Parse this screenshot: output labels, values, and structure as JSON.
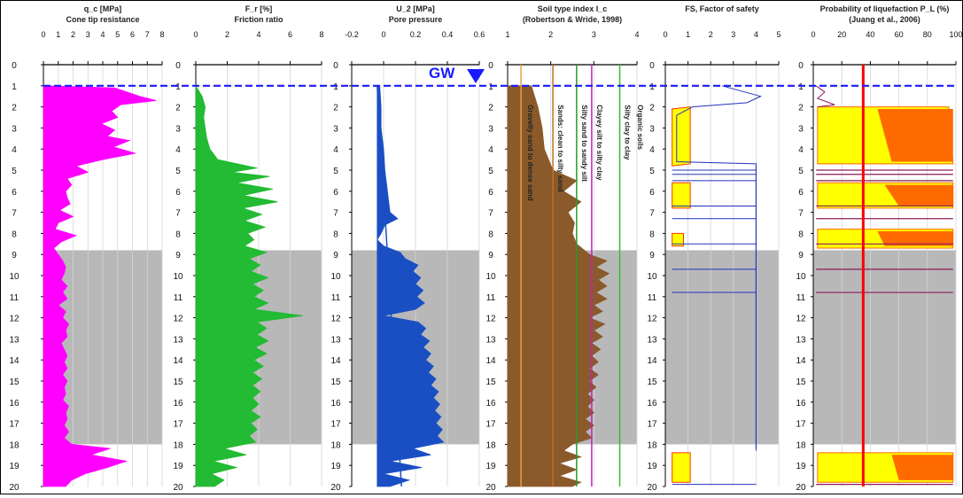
{
  "chart_data": {
    "type": "area",
    "depth_axis": {
      "min": 0,
      "max": 20,
      "ticks": [
        0,
        1,
        2,
        3,
        4,
        5,
        6,
        7,
        8,
        9,
        10,
        11,
        12,
        13,
        14,
        15,
        16,
        17,
        18,
        19,
        20
      ]
    },
    "gw_depth": 1,
    "gw_label": "GW",
    "gray_zone": [
      8.8,
      18.0
    ],
    "panels": [
      {
        "id": "qc",
        "title": "q_c [MPa]",
        "subtitle": "Cone tip resistance",
        "xlim": [
          0,
          8
        ],
        "ticks": [
          "0",
          "1",
          "2",
          "3",
          "4",
          "5",
          "6",
          "7",
          "8"
        ],
        "color": "#ff00ff",
        "profile": [
          [
            1,
            0
          ],
          [
            1.1,
            4.8
          ],
          [
            1.5,
            6.5
          ],
          [
            1.7,
            7.6
          ],
          [
            1.9,
            5.2
          ],
          [
            2.2,
            4.6
          ],
          [
            2.5,
            5.0
          ],
          [
            2.8,
            3.9
          ],
          [
            3.1,
            4.8
          ],
          [
            3.4,
            4.3
          ],
          [
            3.6,
            5.8
          ],
          [
            3.9,
            4.7
          ],
          [
            4.2,
            6.2
          ],
          [
            4.5,
            4.0
          ],
          [
            4.8,
            2.2
          ],
          [
            5.1,
            3.0
          ],
          [
            5.4,
            1.6
          ],
          [
            5.7,
            1.9
          ],
          [
            6.0,
            1.5
          ],
          [
            6.3,
            1.6
          ],
          [
            6.6,
            1.8
          ],
          [
            6.9,
            1.1
          ],
          [
            7.2,
            2.0
          ],
          [
            7.5,
            1.0
          ],
          [
            7.8,
            0.8
          ],
          [
            8.1,
            2.2
          ],
          [
            8.4,
            1.2
          ],
          [
            8.7,
            0.7
          ],
          [
            9.0,
            1.0
          ],
          [
            9.3,
            1.3
          ],
          [
            9.6,
            1.5
          ],
          [
            9.9,
            1.4
          ],
          [
            10.2,
            1.2
          ],
          [
            10.5,
            1.6
          ],
          [
            10.8,
            1.3
          ],
          [
            11.1,
            1.6
          ],
          [
            11.4,
            1.0
          ],
          [
            11.7,
            1.5
          ],
          [
            12.0,
            1.3
          ],
          [
            12.3,
            1.7
          ],
          [
            12.6,
            1.5
          ],
          [
            12.9,
            1.6
          ],
          [
            13.2,
            1.2
          ],
          [
            13.5,
            1.4
          ],
          [
            13.8,
            1.6
          ],
          [
            14.1,
            1.4
          ],
          [
            14.4,
            1.6
          ],
          [
            14.7,
            1.3
          ],
          [
            15.0,
            1.6
          ],
          [
            15.3,
            1.4
          ],
          [
            15.6,
            1.5
          ],
          [
            15.9,
            1.3
          ],
          [
            16.2,
            1.7
          ],
          [
            16.5,
            1.5
          ],
          [
            16.8,
            1.6
          ],
          [
            17.1,
            1.4
          ],
          [
            17.4,
            1.7
          ],
          [
            17.7,
            1.4
          ],
          [
            18.0,
            1.9
          ],
          [
            18.2,
            4.5
          ],
          [
            18.5,
            3.2
          ],
          [
            18.8,
            5.6
          ],
          [
            19.1,
            4.3
          ],
          [
            19.4,
            2.8
          ],
          [
            19.7,
            1.9
          ],
          [
            20,
            1.5
          ]
        ]
      },
      {
        "id": "fr",
        "title": "F_r [%]",
        "subtitle": "Friction ratio",
        "xlim": [
          0,
          8
        ],
        "ticks": [
          "0",
          "2",
          "4",
          "6",
          "8"
        ],
        "color": "#22bb33",
        "profile": [
          [
            1,
            0
          ],
          [
            1.5,
            0.4
          ],
          [
            2.0,
            0.6
          ],
          [
            2.5,
            0.5
          ],
          [
            3.0,
            0.6
          ],
          [
            3.5,
            0.7
          ],
          [
            4.0,
            0.9
          ],
          [
            4.5,
            1.4
          ],
          [
            4.9,
            3.9
          ],
          [
            5.1,
            2.3
          ],
          [
            5.3,
            4.7
          ],
          [
            5.6,
            2.6
          ],
          [
            5.9,
            4.9
          ],
          [
            6.2,
            3.0
          ],
          [
            6.5,
            5.2
          ],
          [
            6.8,
            3.0
          ],
          [
            7.1,
            4.2
          ],
          [
            7.4,
            3.1
          ],
          [
            7.7,
            4.4
          ],
          [
            8.0,
            3.3
          ],
          [
            8.3,
            3.7
          ],
          [
            8.6,
            3.1
          ],
          [
            8.9,
            4.5
          ],
          [
            9.2,
            3.4
          ],
          [
            9.5,
            4.1
          ],
          [
            9.8,
            3.5
          ],
          [
            10.1,
            4.6
          ],
          [
            10.4,
            3.6
          ],
          [
            10.7,
            4.3
          ],
          [
            11.0,
            3.7
          ],
          [
            11.3,
            4.6
          ],
          [
            11.6,
            3.7
          ],
          [
            11.9,
            6.8
          ],
          [
            12.2,
            3.9
          ],
          [
            12.5,
            4.5
          ],
          [
            12.8,
            3.9
          ],
          [
            13.1,
            4.6
          ],
          [
            13.4,
            3.8
          ],
          [
            13.7,
            4.5
          ],
          [
            14.0,
            3.7
          ],
          [
            14.3,
            4.3
          ],
          [
            14.6,
            3.6
          ],
          [
            14.9,
            4.2
          ],
          [
            15.2,
            3.6
          ],
          [
            15.5,
            4.1
          ],
          [
            15.8,
            3.6
          ],
          [
            16.1,
            4.0
          ],
          [
            16.4,
            3.5
          ],
          [
            16.7,
            4.1
          ],
          [
            17.0,
            3.5
          ],
          [
            17.3,
            3.9
          ],
          [
            17.6,
            3.4
          ],
          [
            17.9,
            3.8
          ],
          [
            18.2,
            1.8
          ],
          [
            18.5,
            3.2
          ],
          [
            18.8,
            1.1
          ],
          [
            19.1,
            2.6
          ],
          [
            19.4,
            1.0
          ],
          [
            19.7,
            1.8
          ],
          [
            20,
            1.2
          ]
        ]
      },
      {
        "id": "u2",
        "title": "U_2 [MPa]",
        "subtitle": "Pore pressure",
        "xlim": [
          -0.2,
          0.8
        ],
        "ticks": [
          "-0.2",
          "0",
          "0.2",
          "0.4",
          "0.6"
        ],
        "color": "#1a4fc4",
        "hydrostatic": [
          [
            1,
            0
          ],
          [
            20,
            0.19
          ]
        ],
        "profile": [
          [
            1,
            0.02
          ],
          [
            2,
            0.03
          ],
          [
            3,
            0.03
          ],
          [
            4,
            0.05
          ],
          [
            5,
            0.06
          ],
          [
            6,
            0.08
          ],
          [
            7,
            0.1
          ],
          [
            7.3,
            0.16
          ],
          [
            7.6,
            0.06
          ],
          [
            8.0,
            0.03
          ],
          [
            8.3,
            0.0
          ],
          [
            8.6,
            0.05
          ],
          [
            8.9,
            0.18
          ],
          [
            9.2,
            0.22
          ],
          [
            9.5,
            0.32
          ],
          [
            9.8,
            0.28
          ],
          [
            10.1,
            0.34
          ],
          [
            10.4,
            0.3
          ],
          [
            10.7,
            0.36
          ],
          [
            11.0,
            0.31
          ],
          [
            11.3,
            0.37
          ],
          [
            11.6,
            0.3
          ],
          [
            11.9,
            0.05
          ],
          [
            12.2,
            0.32
          ],
          [
            12.5,
            0.38
          ],
          [
            12.8,
            0.34
          ],
          [
            13.1,
            0.41
          ],
          [
            13.4,
            0.36
          ],
          [
            13.7,
            0.42
          ],
          [
            14.0,
            0.38
          ],
          [
            14.3,
            0.44
          ],
          [
            14.6,
            0.4
          ],
          [
            14.9,
            0.46
          ],
          [
            15.2,
            0.42
          ],
          [
            15.5,
            0.48
          ],
          [
            15.8,
            0.44
          ],
          [
            16.1,
            0.49
          ],
          [
            16.4,
            0.45
          ],
          [
            16.7,
            0.5
          ],
          [
            17.0,
            0.46
          ],
          [
            17.3,
            0.51
          ],
          [
            17.6,
            0.47
          ],
          [
            17.9,
            0.52
          ],
          [
            18.2,
            0.28
          ],
          [
            18.5,
            0.42
          ],
          [
            18.8,
            0.1
          ],
          [
            19.1,
            0.35
          ],
          [
            19.4,
            0.05
          ],
          [
            19.7,
            0.25
          ],
          [
            20,
            0.1
          ]
        ]
      },
      {
        "id": "ic",
        "title": "Soil type index I_c",
        "subtitle": "(Robertson & Wride, 1998)",
        "xlim": [
          1,
          4
        ],
        "ticks": [
          "1",
          "2",
          "3",
          "4"
        ],
        "color": "#8b5a2b",
        "boundaries": [
          {
            "x": 1.31,
            "label": "Gravelly sand to dense sand",
            "color": "#e8a040"
          },
          {
            "x": 2.05,
            "label": "Sands: clean to silty sand",
            "color": "#c07020"
          },
          {
            "x": 2.6,
            "label": "Silty sand to sandy silt",
            "color": "#2a9a2a"
          },
          {
            "x": 2.95,
            "label": "Clayey silt to silty clay",
            "color": "#c020c0"
          },
          {
            "x": 3.6,
            "label": "Silty clay to clay",
            "color": "#30c030"
          },
          {
            "x": 3.9,
            "label": "Organic soils",
            "color": "#ffffff"
          }
        ],
        "profile": [
          [
            1,
            1.55
          ],
          [
            2,
            1.7
          ],
          [
            3,
            1.8
          ],
          [
            4,
            1.85
          ],
          [
            5,
            2.05
          ],
          [
            5.5,
            2.6
          ],
          [
            6,
            2.3
          ],
          [
            6.5,
            2.7
          ],
          [
            7,
            2.4
          ],
          [
            7.5,
            2.55
          ],
          [
            8,
            2.5
          ],
          [
            8.5,
            2.6
          ],
          [
            9,
            2.9
          ],
          [
            9.3,
            3.3
          ],
          [
            9.6,
            3.05
          ],
          [
            9.9,
            3.35
          ],
          [
            10.2,
            3.1
          ],
          [
            10.5,
            3.3
          ],
          [
            10.8,
            3.05
          ],
          [
            11.1,
            3.3
          ],
          [
            11.4,
            3.0
          ],
          [
            11.7,
            3.2
          ],
          [
            12.0,
            2.9
          ],
          [
            12.3,
            3.25
          ],
          [
            12.6,
            3.0
          ],
          [
            12.9,
            3.2
          ],
          [
            13.2,
            2.95
          ],
          [
            13.5,
            3.15
          ],
          [
            13.8,
            2.95
          ],
          [
            14.1,
            3.1
          ],
          [
            14.4,
            2.9
          ],
          [
            14.7,
            3.1
          ],
          [
            15.0,
            2.9
          ],
          [
            15.3,
            3.05
          ],
          [
            15.6,
            2.85
          ],
          [
            15.9,
            3.0
          ],
          [
            16.2,
            2.85
          ],
          [
            16.5,
            3.0
          ],
          [
            16.8,
            2.8
          ],
          [
            17.1,
            3.0
          ],
          [
            17.4,
            2.8
          ],
          [
            17.7,
            2.95
          ],
          [
            18.0,
            2.5
          ],
          [
            18.3,
            2.3
          ],
          [
            18.6,
            2.7
          ],
          [
            18.9,
            2.2
          ],
          [
            19.2,
            2.6
          ],
          [
            19.5,
            2.2
          ],
          [
            19.8,
            2.7
          ],
          [
            20,
            2.5
          ]
        ]
      },
      {
        "id": "fs",
        "title": "FS, Factor of safety",
        "subtitle": "",
        "xlim": [
          0,
          5
        ],
        "ticks": [
          "0",
          "1",
          "2",
          "3",
          "4",
          "5"
        ],
        "color": "#ffff00",
        "fs_line": 4.0
      },
      {
        "id": "pl",
        "title": "Probability of liquefaction P_L (%)",
        "subtitle": "(Juang et al., 2006)",
        "xlim": [
          0,
          100
        ],
        "ticks": [
          "0",
          "20",
          "40",
          "60",
          "80",
          "100"
        ],
        "color": "#ff6a00",
        "threshold": 35
      }
    ]
  }
}
